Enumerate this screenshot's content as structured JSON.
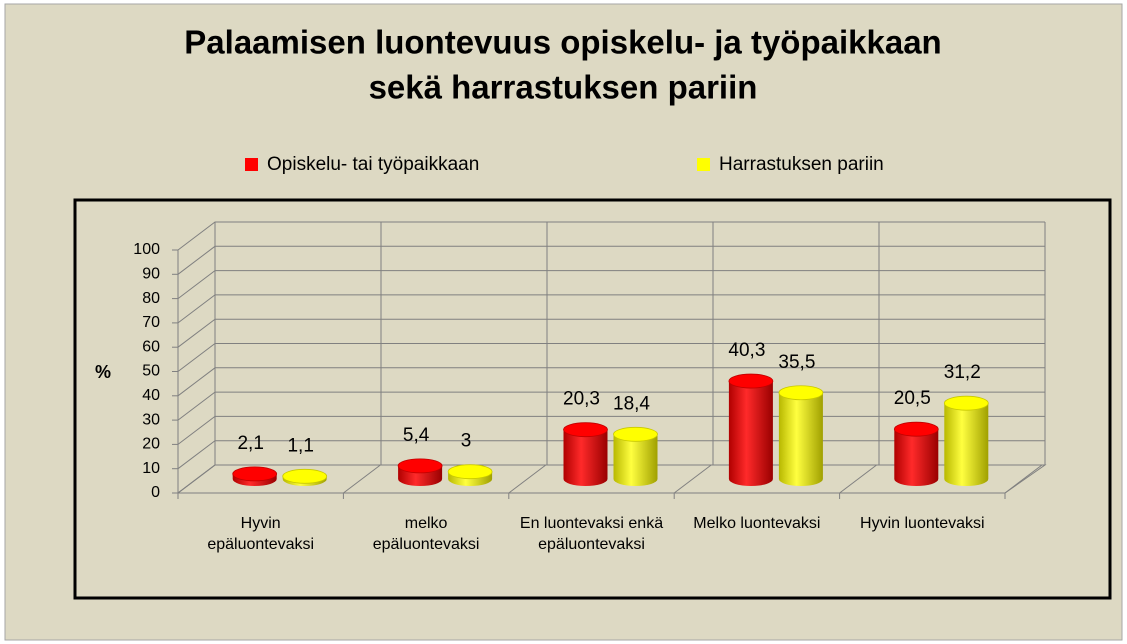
{
  "chart_data": {
    "type": "bar3d",
    "title": [
      "Palaamisen luontevuus opiskelu- ja työpaikkaan",
      "sekä harrastuksen pariin"
    ],
    "ylabel": "%",
    "categories": [
      "Hyvin epäluontevaksi",
      "melko epäluontevaksi",
      "En luontevaksi enkä epäluontevaksi",
      "Melko luontevaksi",
      "Hyvin luontevaksi"
    ],
    "series": [
      {
        "name": "Opiskelu- tai työpaikkaan",
        "color": "#ff0000",
        "values": [
          2.1,
          5.4,
          20.3,
          40.3,
          20.5
        ],
        "value_labels": [
          "2,1",
          "5,4",
          "20,3",
          "40,3",
          "20,5"
        ]
      },
      {
        "name": "Harrastuksen pariin",
        "color": "#ffff00",
        "values": [
          1.1,
          3,
          18.4,
          35.5,
          31.2
        ],
        "value_labels": [
          "1,1",
          "3",
          "18,4",
          "35,5",
          "31,2"
        ]
      }
    ],
    "ylim": [
      0,
      100
    ],
    "yticks": [
      0,
      10,
      20,
      30,
      40,
      50,
      60,
      70,
      80,
      90,
      100
    ],
    "grid": true
  }
}
